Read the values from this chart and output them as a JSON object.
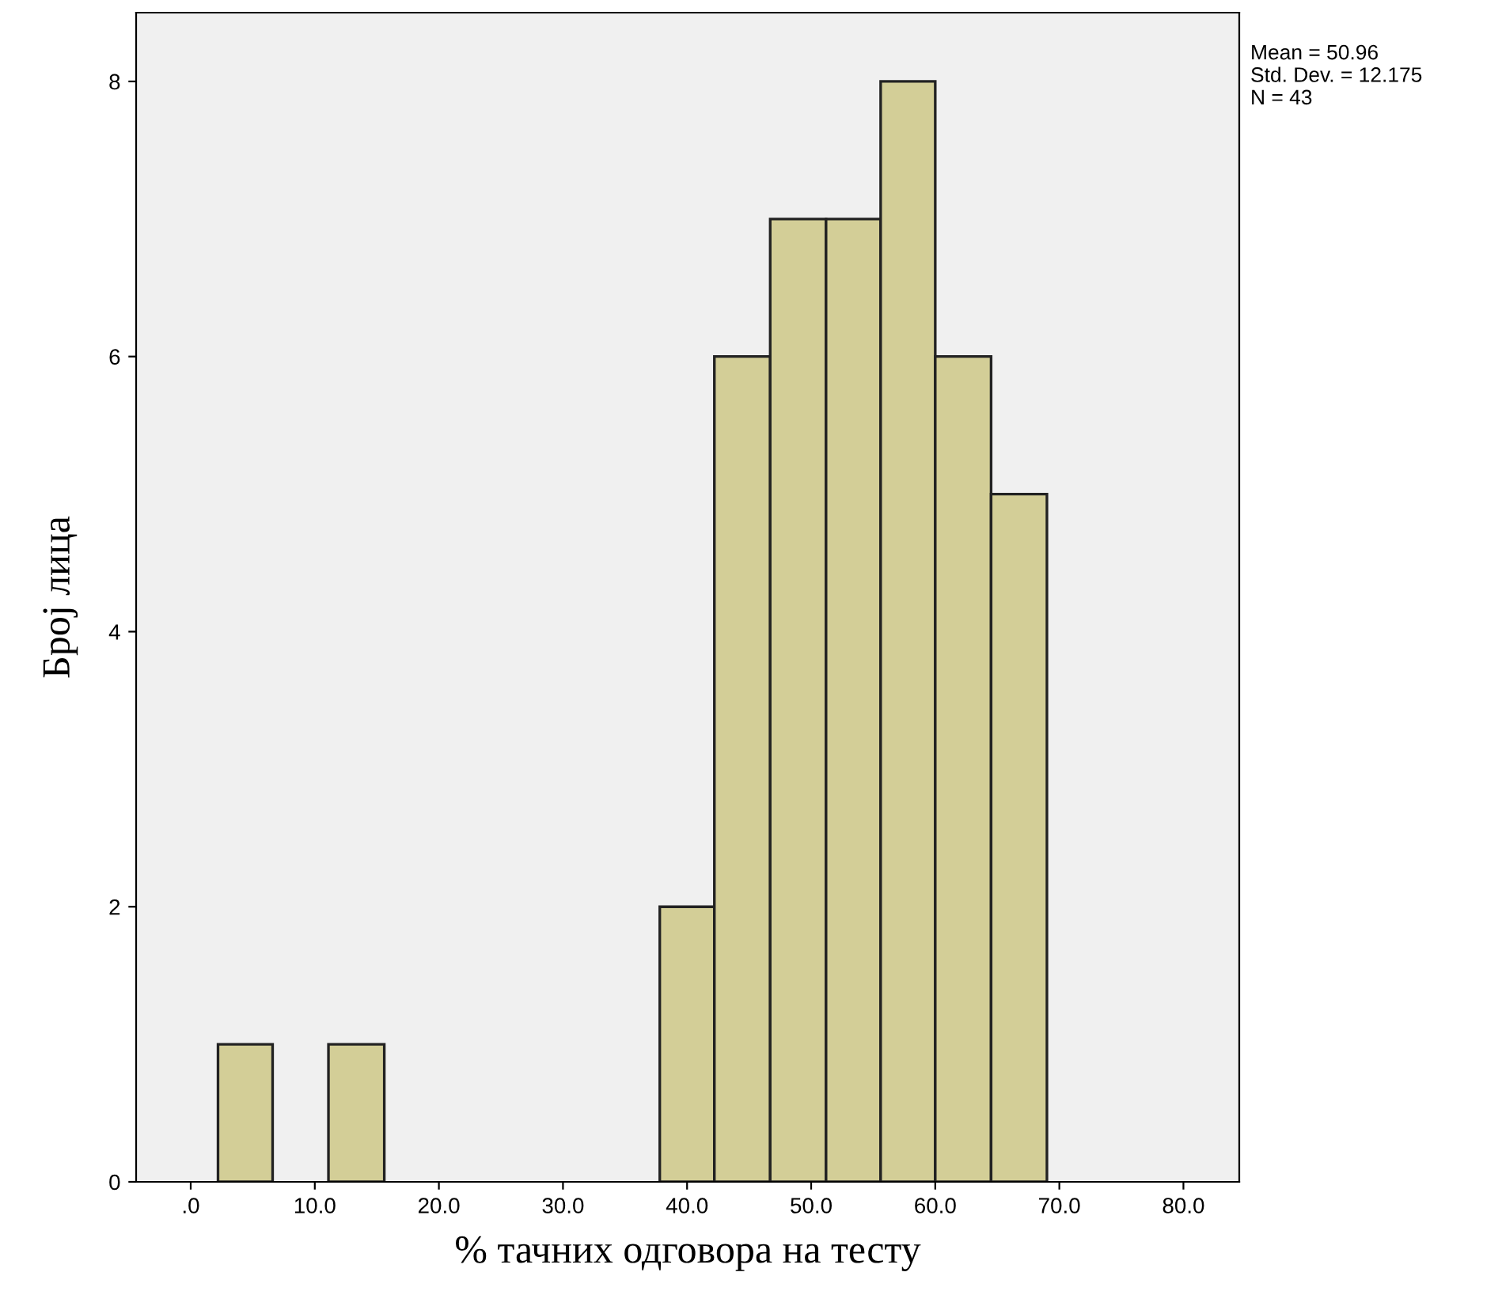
{
  "chart_data": {
    "type": "histogram",
    "xlabel": "% тачних одговора на тесту",
    "ylabel": "Број лица",
    "annotations": [
      "Mean = 50.96\nStd. Dev. = 12.175\nN = 43"
    ],
    "bins": [
      2.2,
      6.6,
      11.1,
      15.6,
      37.8,
      42.2,
      46.7,
      51.2,
      55.6,
      60.0,
      64.5,
      69.0
    ],
    "values": [
      1,
      0,
      1,
      0,
      2,
      6,
      7,
      7,
      8,
      6,
      5
    ],
    "color": "#d3ce97",
    "xlim": [
      -4.4,
      84.5
    ],
    "ylim": [
      0,
      8.5
    ],
    "xticks": [
      {
        "value": 0,
        "label": ".0"
      },
      {
        "value": 10,
        "label": "10.0"
      },
      {
        "value": 20,
        "label": "20.0"
      },
      {
        "value": 30,
        "label": "30.0"
      },
      {
        "value": 40,
        "label": "40.0"
      },
      {
        "value": 50,
        "label": "50.0"
      },
      {
        "value": 60,
        "label": "60.0"
      },
      {
        "value": 70,
        "label": "70.0"
      },
      {
        "value": 80,
        "label": "80.0"
      }
    ],
    "yticks": [
      0,
      2,
      4,
      6,
      8
    ],
    "grid": false,
    "legend": false
  }
}
